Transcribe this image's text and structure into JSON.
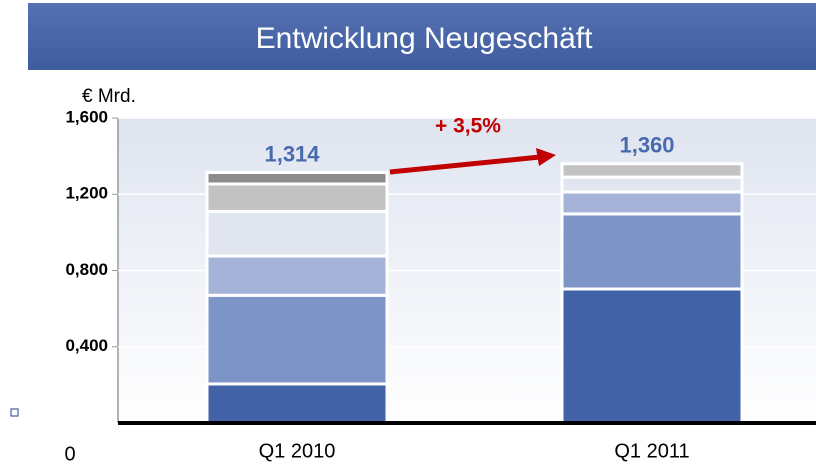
{
  "chart_data": {
    "type": "stacked_bar",
    "title": "Entwicklung Neugeschäft",
    "y_axis_label": "€ Mrd.",
    "annotation": "+ 3,5%",
    "categories": [
      "Q1 2010",
      "Q1 2011"
    ],
    "series": [
      {
        "color": "#4262a8",
        "values": [
          0.205,
          0.703
        ]
      },
      {
        "color": "#7d94c6",
        "values": [
          0.465,
          0.394
        ]
      },
      {
        "color": "#a5b3d8",
        "values": [
          0.206,
          0.115
        ]
      },
      {
        "color": "#e1e5ef",
        "values": [
          0.234,
          0.078
        ]
      },
      {
        "color": "#c2c2c2",
        "values": [
          0.144,
          0.07
        ]
      },
      {
        "color": "#8c8c8c",
        "values": [
          0.06,
          null
        ]
      }
    ],
    "totals": {
      "values": [
        1.314,
        1.36
      ],
      "value_labels": [
        "1,314",
        "1,360"
      ]
    },
    "ylim": [
      0,
      1.6
    ],
    "yticks": [
      0,
      {
        "value": 0.4,
        "label": "0,400"
      },
      {
        "value": 0.8,
        "label": "0,800"
      },
      {
        "value": 1.2,
        "label": "1,200"
      },
      {
        "value": 1.6,
        "label": "1,600"
      }
    ]
  }
}
